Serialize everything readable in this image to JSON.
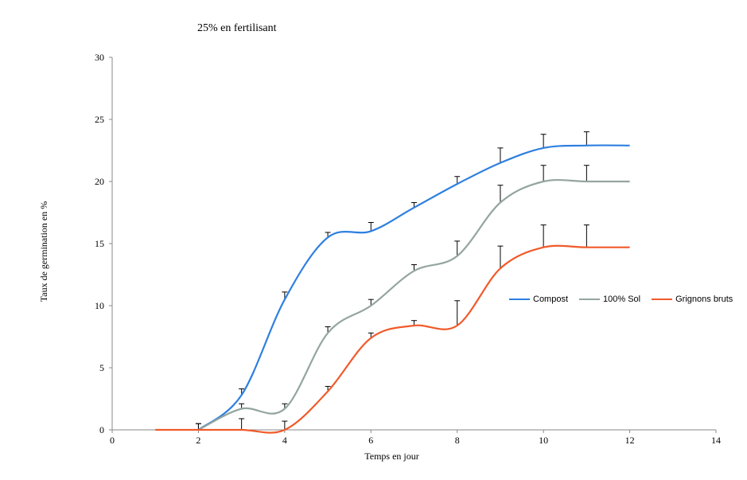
{
  "chart_data": {
    "type": "line",
    "title": "25% en fertilisant",
    "xlabel": "Temps en jour",
    "ylabel": "Taux de germination en %",
    "xlim": [
      0,
      14
    ],
    "ylim": [
      0,
      30
    ],
    "xticks": [
      0,
      2,
      4,
      6,
      8,
      10,
      12,
      14
    ],
    "yticks": [
      0,
      5,
      10,
      15,
      20,
      25,
      30
    ],
    "grid": false,
    "legend_position": "right",
    "series": [
      {
        "name": "Compost",
        "color": "#2e7fe0",
        "x": [
          2,
          3,
          4,
          5,
          6,
          7,
          8,
          9,
          10,
          11,
          12
        ],
        "y": [
          0,
          2.8,
          10.5,
          15.5,
          16.0,
          17.9,
          19.8,
          21.5,
          22.7,
          22.9,
          22.9
        ],
        "error": [
          0.5,
          0.5,
          0.6,
          0.4,
          0.7,
          0.4,
          0.6,
          1.2,
          1.1,
          1.1,
          null
        ]
      },
      {
        "name": "100% Sol",
        "color": "#94a59f",
        "x": [
          2,
          3,
          4,
          5,
          6,
          7,
          8,
          9,
          10,
          11,
          12
        ],
        "y": [
          0,
          1.7,
          1.7,
          7.8,
          10.0,
          12.8,
          14.0,
          18.3,
          20.0,
          20.0,
          20.0
        ],
        "error": [
          0.5,
          0.4,
          0.4,
          0.5,
          0.5,
          0.5,
          1.2,
          1.4,
          1.3,
          1.3,
          null
        ]
      },
      {
        "name": "Grignons bruts",
        "color": "#f15a29",
        "x": [
          1,
          2,
          3,
          4,
          5,
          6,
          7,
          8,
          9,
          10,
          11,
          12
        ],
        "y": [
          0,
          0,
          0,
          0,
          3.1,
          7.4,
          8.4,
          8.4,
          13.0,
          14.7,
          14.7,
          14.7
        ],
        "error": [
          null,
          null,
          0.9,
          0.7,
          0.4,
          0.4,
          0.4,
          2.0,
          1.8,
          1.8,
          1.8,
          null
        ]
      }
    ]
  }
}
